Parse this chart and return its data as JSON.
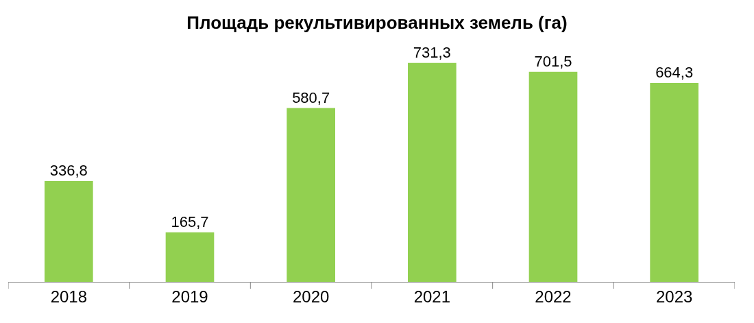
{
  "chart_data": {
    "type": "bar",
    "title": "Площадь рекультивированных земель (га)",
    "categories": [
      "2018",
      "2019",
      "2020",
      "2021",
      "2022",
      "2023"
    ],
    "values": [
      336.8,
      165.7,
      580.7,
      731.3,
      701.5,
      664.3
    ],
    "value_labels": [
      "336,8",
      "165,7",
      "580,7",
      "731,3",
      "701,5",
      "664,3"
    ],
    "color": "#92d050"
  }
}
